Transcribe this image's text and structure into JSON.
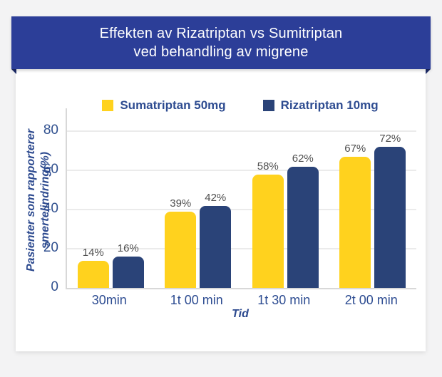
{
  "title": {
    "line1": "Effekten av Rizatriptan vs Sumitriptan",
    "line2": "ved behandling av migrene"
  },
  "chart_data": {
    "type": "bar",
    "title": "Effekten av Rizatriptan vs Sumitriptan ved behandling av migrene",
    "categories": [
      "30min",
      "1t 00 min",
      "1t 30 min",
      "2t 00 min"
    ],
    "series": [
      {
        "name": "Sumatriptan 50mg",
        "color": "#ffd21e",
        "values": [
          14,
          39,
          58,
          67
        ]
      },
      {
        "name": "Rizatriptan 10mg",
        "color": "#2a4378",
        "values": [
          16,
          42,
          62,
          72
        ]
      }
    ],
    "value_suffix": "%",
    "xlabel": "Tid",
    "ylabel": "Pasienter som rapporterer smertelindring(%)",
    "ylabel_lines": [
      "Pasienter som rapporterer",
      "smertelindring(%)"
    ],
    "yticks": [
      0,
      20,
      40,
      60,
      80
    ],
    "ylim": [
      0,
      80
    ],
    "grid": true,
    "legend_position": "top"
  },
  "colors": {
    "background": "#f3f3f4",
    "card": "#ffffff",
    "banner": "#2c3e98",
    "banner_fold": "#1d2b69",
    "banner_text": "#ffffff",
    "sumatriptan_yellow": "#ffd21e",
    "rizatriptan_navy": "#2a4378",
    "axis_text": "#2e4d92",
    "value_text": "#4f4f4f",
    "gridline": "#ebebeb",
    "axis_line": "#d8d8d8"
  }
}
